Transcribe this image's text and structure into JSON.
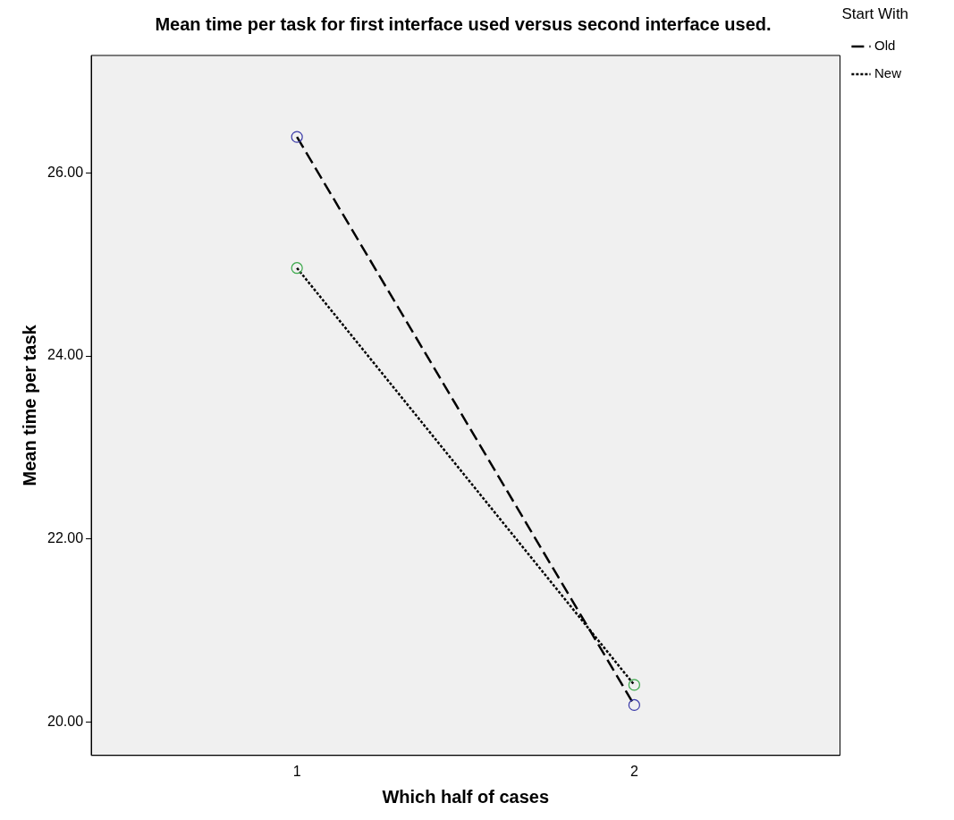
{
  "chart_data": {
    "type": "line",
    "title": "Mean time per task for first interface used versus second interface used.",
    "xlabel": "Which half of cases",
    "ylabel": "Mean time per task",
    "legend_title": "Start With",
    "x": [
      1,
      2
    ],
    "xlim": [
      0.39,
      2.61
    ],
    "xticks": [
      1,
      2
    ],
    "ylim": [
      19.64,
      27.28
    ],
    "yticks": [
      {
        "value": 20,
        "label": "20.00"
      },
      {
        "value": 22,
        "label": "22.00"
      },
      {
        "value": 24,
        "label": "24.00"
      },
      {
        "value": 26,
        "label": "26.00"
      }
    ],
    "grid": false,
    "legend": "right",
    "marker": "circle",
    "series": [
      {
        "name": "Old",
        "color": "#000000",
        "colors": [
          "#3a3aa8",
          "#3a3aa8"
        ],
        "line_style": "dashed",
        "values": [
          26.39,
          20.19
        ]
      },
      {
        "name": "New",
        "color": "#000000",
        "colors": [
          "#3aa84a",
          "#3aa84a"
        ],
        "line_style": "dotted",
        "values": [
          24.96,
          20.41
        ]
      }
    ]
  }
}
